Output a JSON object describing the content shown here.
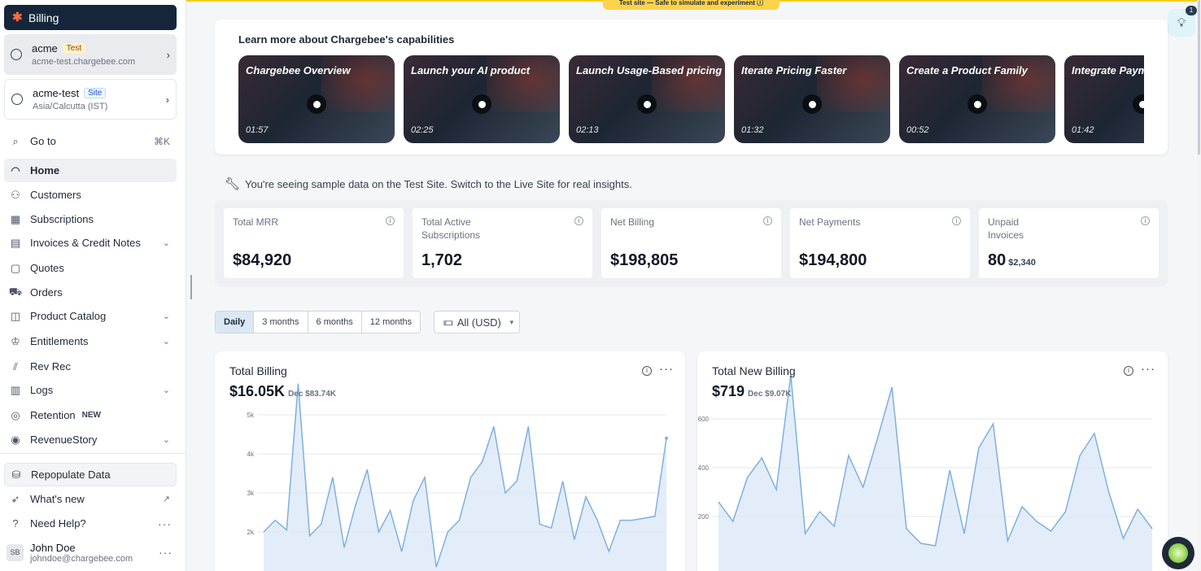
{
  "sidebar": {
    "app_title": "Billing",
    "sites": [
      {
        "name": "acme",
        "badge": "Test",
        "sub": "acme-test.chargebee.com"
      },
      {
        "name": "acme-test",
        "badge": "Site",
        "sub": "Asia/Calcutta (IST)"
      }
    ],
    "goto": {
      "label": "Go to",
      "shortcut": "⌘K"
    },
    "items": [
      {
        "label": "Home",
        "icon": "gauge-icon"
      },
      {
        "label": "Customers",
        "icon": "users-icon"
      },
      {
        "label": "Subscriptions",
        "icon": "calendar-icon"
      },
      {
        "label": "Invoices & Credit Notes",
        "icon": "invoice-icon"
      },
      {
        "label": "Quotes",
        "icon": "quote-icon"
      },
      {
        "label": "Orders",
        "icon": "cart-icon"
      },
      {
        "label": "Product Catalog",
        "icon": "box-icon"
      },
      {
        "label": "Entitlements",
        "icon": "crown-icon"
      },
      {
        "label": "Rev Rec",
        "icon": "chart-icon"
      },
      {
        "label": "Logs",
        "icon": "log-icon"
      },
      {
        "label": "Retention",
        "icon": "target-icon",
        "badge": "NEW"
      },
      {
        "label": "RevenueStory",
        "icon": "compass-icon"
      }
    ],
    "repopulate": "Repopulate Data",
    "whats_new": "What's new",
    "help": "Need Help?",
    "user": {
      "initials": "SB",
      "name": "John Doe",
      "email": "johndoe@chargebee.com"
    }
  },
  "banner": {
    "text": "Test site — Safe to simulate and experiment",
    "notif_count": "1"
  },
  "learn": {
    "title": "Learn more about Chargebee's capabilities",
    "videos": [
      {
        "title": "Chargebee Overview",
        "duration": "01:57"
      },
      {
        "title": "Launch your AI product",
        "duration": "02:25"
      },
      {
        "title": "Launch Usage-Based pricing",
        "duration": "02:13"
      },
      {
        "title": "Iterate Pricing Faster",
        "duration": "01:32"
      },
      {
        "title": "Create a Product Family",
        "duration": "00:52"
      },
      {
        "title": "Integrate Payments",
        "duration": "01:42"
      }
    ]
  },
  "sample_message": "You're seeing sample data on the Test Site. Switch to the Live Site for real insights.",
  "kpis": [
    {
      "label": "Total MRR",
      "value": "$84,920"
    },
    {
      "label": "Total Active Subscriptions",
      "value": "1,702"
    },
    {
      "label": "Net Billing",
      "value": "$198,805"
    },
    {
      "label": "Net Payments",
      "value": "$194,800"
    },
    {
      "label": "Unpaid Invoices",
      "value": "80",
      "sub": "$2,340"
    }
  ],
  "filters": {
    "ranges": [
      "Daily",
      "3 months",
      "6 months",
      "12 months"
    ],
    "selected": "Daily",
    "currency": "All (USD)"
  },
  "charts": [
    {
      "title": "Total Billing",
      "value": "$16.05K",
      "compare": "Dec $83.74K",
      "color": "#7fb0dd",
      "fill": "#dbe9f7",
      "y_ticks": [
        "5k",
        "4k",
        "3k",
        "2k"
      ],
      "series": [
        2.0,
        2.3,
        2.05,
        5.8,
        1.9,
        2.2,
        3.4,
        1.6,
        2.7,
        3.6,
        2.0,
        2.55,
        1.5,
        2.8,
        3.4,
        1.1,
        2.0,
        2.3,
        3.4,
        3.8,
        4.7,
        3.0,
        3.3,
        4.7,
        2.2,
        2.1,
        3.3,
        1.8,
        2.9,
        2.3,
        1.5,
        2.3,
        2.3,
        2.35,
        2.4,
        4.4
      ]
    },
    {
      "title": "Total New Billing",
      "value": "$719",
      "compare": "Dec $9.07K",
      "color": "#7fb0dd",
      "fill": "#dbe9f7",
      "y_ticks": [
        "600",
        "400",
        "200"
      ],
      "series": [
        260,
        180,
        360,
        440,
        310,
        780,
        130,
        220,
        160,
        450,
        320,
        520,
        730,
        150,
        90,
        80,
        390,
        130,
        480,
        580,
        100,
        240,
        180,
        140,
        220,
        450,
        540,
        300,
        110,
        230,
        150
      ]
    }
  ]
}
